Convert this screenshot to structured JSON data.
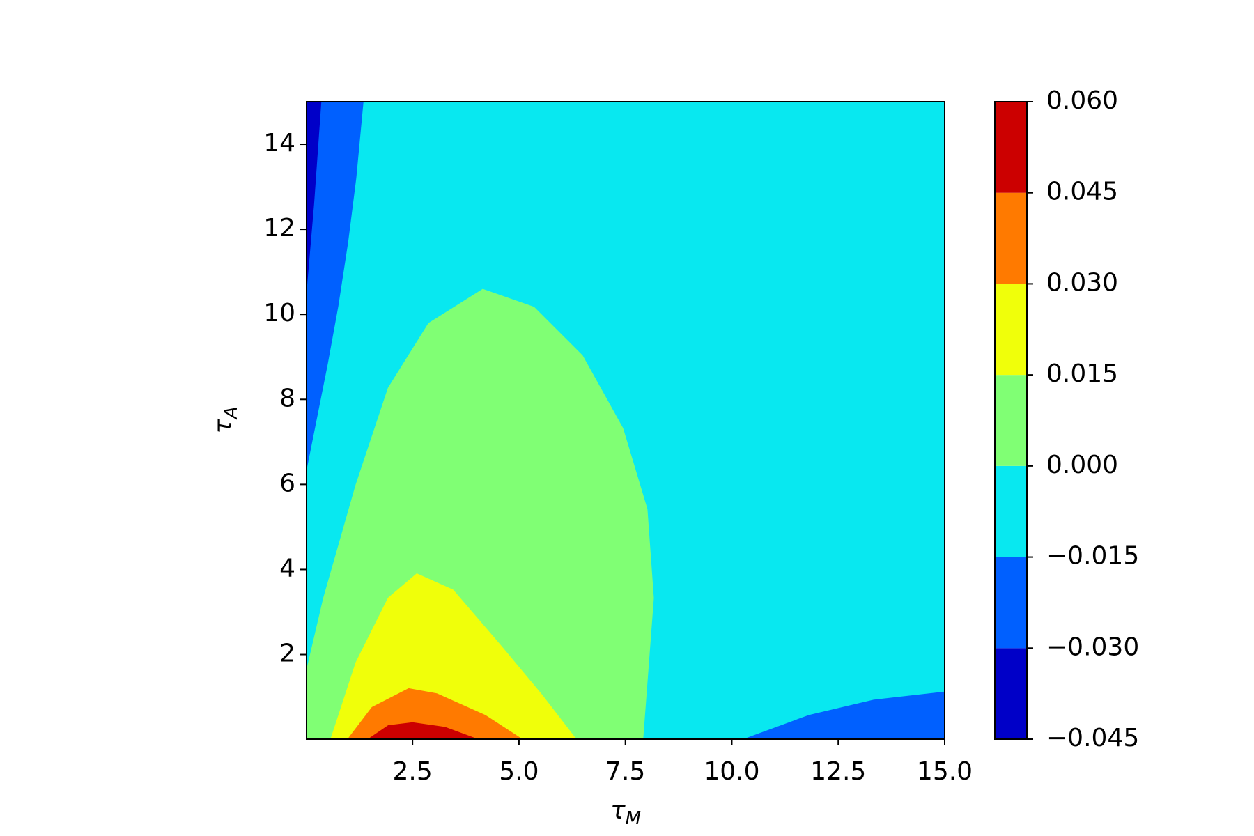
{
  "chart_data": {
    "type": "contourf",
    "xlabel": "τ",
    "xlabel_sub": "M",
    "ylabel": "τ",
    "ylabel_sub": "A",
    "xlim": [
      0.01,
      15
    ],
    "ylim": [
      0.01,
      15
    ],
    "xticks": [
      2.5,
      {
        "value": 5,
        "label": "5.0"
      },
      7.5,
      {
        "value": 10,
        "label": "10.0"
      },
      12.5,
      {
        "value": 15,
        "label": "15.0"
      }
    ],
    "yticks": [
      2,
      4,
      6,
      8,
      10,
      12,
      14
    ],
    "levels": [
      -0.045,
      -0.03,
      -0.015,
      0,
      0.015,
      0.03,
      0.045,
      0.06
    ],
    "colors": [
      "#0000c8",
      "#0060ff",
      "#08e8f0",
      "#80ff74",
      "#f0ff0a",
      "#ff7a00",
      "#cc0000"
    ],
    "cbticks": [
      {
        "value": -0.045,
        "label": "−0.045"
      },
      {
        "value": -0.03,
        "label": "−0.030"
      },
      {
        "value": -0.015,
        "label": "−0.015"
      },
      {
        "value": 0,
        "label": "0.000"
      },
      {
        "value": 0.015,
        "label": "0.015"
      },
      {
        "value": 0.03,
        "label": "0.030"
      },
      {
        "value": 0.045,
        "label": "0.045"
      },
      {
        "value": 0.06,
        "label": "0.060"
      }
    ],
    "regions": [
      {
        "color": "#08e8f0",
        "x": [
          0.01,
          15,
          15,
          0.01
        ],
        "y": [
          0.01,
          0.01,
          15,
          15
        ]
      },
      {
        "color": "#0060ff",
        "x": [
          0.01,
          1.34,
          1.17,
          0.98,
          0.75,
          0.5,
          0.01
        ],
        "y": [
          15,
          15,
          13.2,
          11.7,
          10.2,
          8.83,
          6.37
        ]
      },
      {
        "color": "#0000c8",
        "x": [
          0.01,
          0.35,
          0.18,
          0.01
        ],
        "y": [
          15,
          15,
          12.6,
          10.6
        ]
      },
      {
        "color": "#0060ff",
        "x": [
          10.29,
          11.81,
          13.33,
          15,
          15
        ],
        "y": [
          0.01,
          0.57,
          0.93,
          1.12,
          0.01
        ]
      },
      {
        "color": "#80ff74",
        "x": [
          0.01,
          0.01,
          0.41,
          1.17,
          1.93,
          2.88,
          4.15,
          5.35,
          6.49,
          7.44,
          8.01,
          8.16,
          7.91
        ],
        "y": [
          0.01,
          1.62,
          3.33,
          5.99,
          8.27,
          9.79,
          10.59,
          10.17,
          9.03,
          7.32,
          5.42,
          3.33,
          0.01
        ]
      },
      {
        "color": "#f0ff0a",
        "x": [
          0.58,
          1.17,
          1.93,
          2.6,
          3.45,
          4.59,
          5.54,
          6.34
        ],
        "y": [
          0.01,
          1.81,
          3.33,
          3.9,
          3.52,
          2.19,
          1.05,
          0.01
        ]
      },
      {
        "color": "#ff7a00",
        "x": [
          0.98,
          1.55,
          2.41,
          3.07,
          4.21,
          5.07
        ],
        "y": [
          0.01,
          0.76,
          1.2,
          1.08,
          0.57,
          0.01
        ]
      },
      {
        "color": "#cc0000",
        "x": [
          1.46,
          1.93,
          2.5,
          3.26,
          4.02
        ],
        "y": [
          0.01,
          0.33,
          0.4,
          0.29,
          0.01
        ]
      }
    ]
  }
}
